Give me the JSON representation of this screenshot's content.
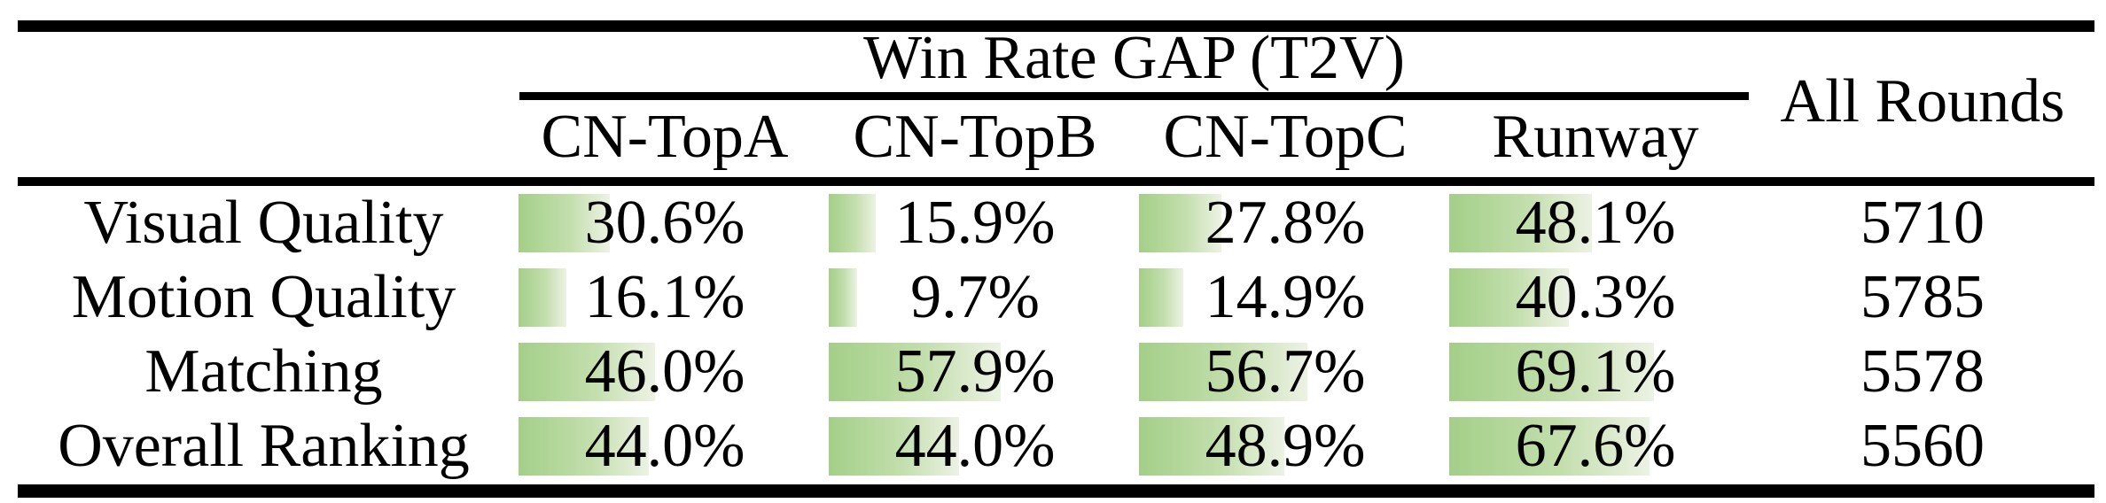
{
  "table": {
    "title": "Win Rate GAP (T2V)",
    "all_rounds_header": "All Rounds",
    "columns": [
      "CN-TopA",
      "CN-TopB",
      "CN-TopC",
      "Runway"
    ],
    "rows": [
      {
        "label": "Visual Quality",
        "cells": [
          "30.6%",
          "15.9%",
          "27.8%",
          "48.1%"
        ],
        "all_rounds": "5710"
      },
      {
        "label": "Motion Quality",
        "cells": [
          "16.1%",
          "9.7%",
          "14.9%",
          "40.3%"
        ],
        "all_rounds": "5785"
      },
      {
        "label": "Matching",
        "cells": [
          "46.0%",
          "57.9%",
          "56.7%",
          "69.1%"
        ],
        "all_rounds": "5578"
      },
      {
        "label": "Overall Ranking",
        "cells": [
          "44.0%",
          "44.0%",
          "48.9%",
          "67.6%"
        ],
        "all_rounds": "5560"
      }
    ],
    "bar_colors": {
      "start": "#a3cf88",
      "mid": "#c2deac",
      "end": "#edf2e4"
    }
  }
}
